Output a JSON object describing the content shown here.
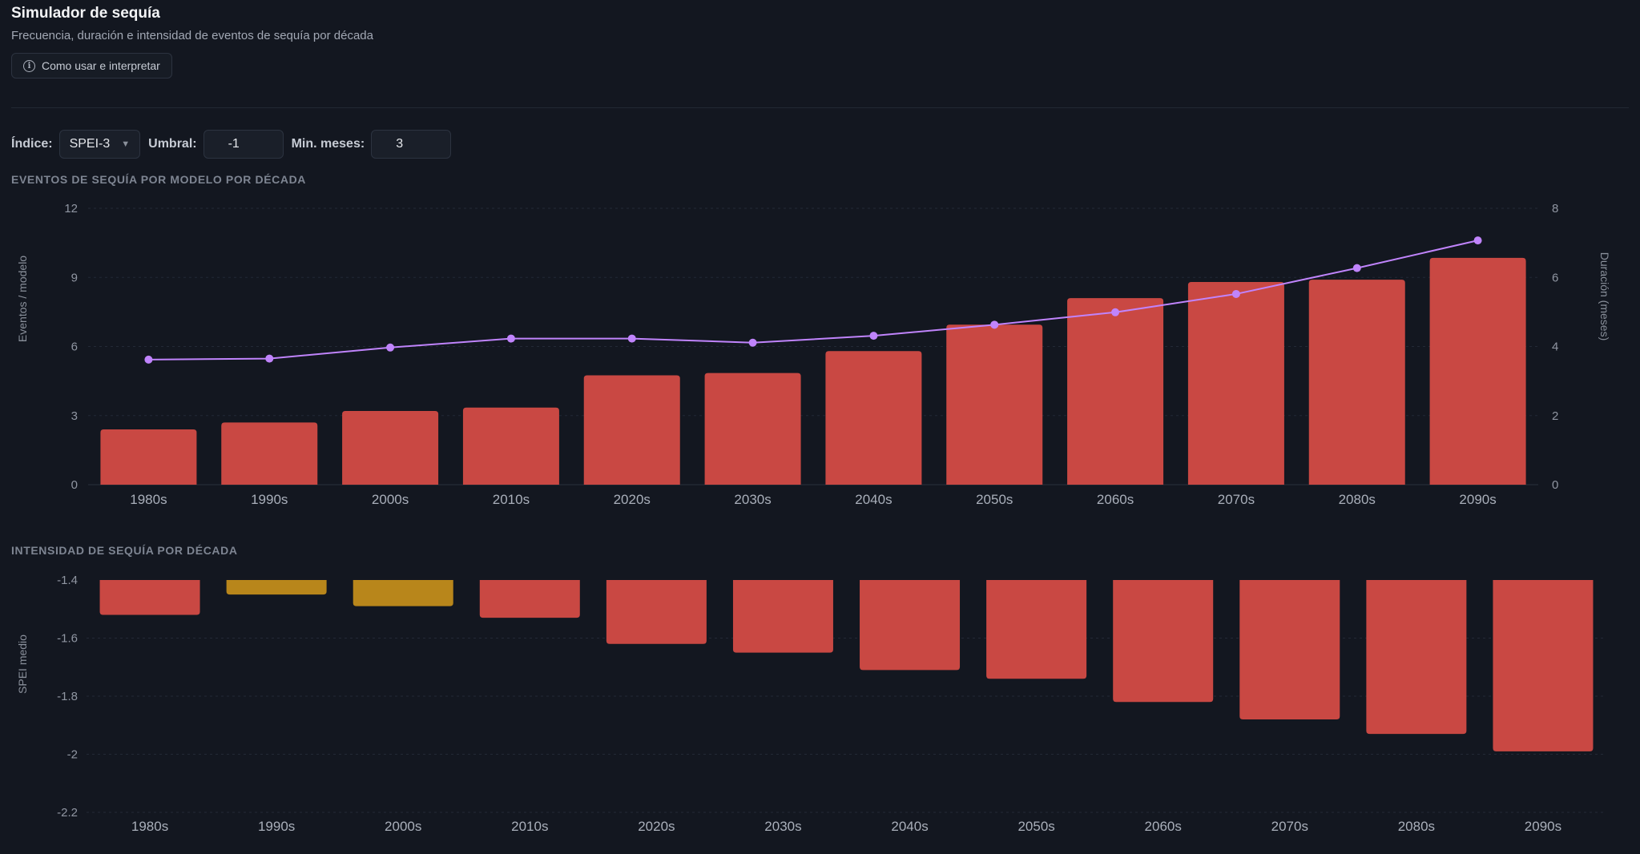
{
  "header": {
    "title": "Simulador de sequía",
    "subtitle": "Frecuencia, duración e intensidad de eventos de sequía por década",
    "help_button_label": "Como usar e interpretar",
    "help_icon_glyph": "i"
  },
  "controls": {
    "index_label": "Índice:",
    "index_value": "SPEI-3",
    "threshold_label": "Umbral:",
    "threshold_value": "-1",
    "min_months_label": "Min. meses:",
    "min_months_value": "3"
  },
  "colors": {
    "bar_red": "#c94843",
    "bar_gold": "#b8861b",
    "line_purple": "#c084fc",
    "axis_text": "#9096a2",
    "grid": "#232936"
  },
  "chart_data": [
    {
      "type": "bar",
      "title": "EVENTOS DE SEQUÍA POR MODELO POR DÉCADA",
      "categories": [
        "1980s",
        "1990s",
        "2000s",
        "2010s",
        "2020s",
        "2030s",
        "2040s",
        "2050s",
        "2060s",
        "2070s",
        "2080s",
        "2090s"
      ],
      "series": [
        {
          "name": "Eventos / modelo",
          "type": "bar",
          "axis": "left",
          "values": [
            2.4,
            2.7,
            3.2,
            3.35,
            4.75,
            4.85,
            5.8,
            6.95,
            8.1,
            8.8,
            8.9,
            9.85
          ]
        },
        {
          "name": "Duración (meses)",
          "type": "line",
          "axis": "right",
          "values": [
            3.62,
            3.65,
            3.97,
            4.23,
            4.23,
            4.11,
            4.31,
            4.63,
            4.99,
            5.52,
            6.27,
            7.07
          ]
        }
      ],
      "ylabel": "Eventos / modelo",
      "ylabel_right": "Duración (meses)",
      "ylim": [
        0,
        12
      ],
      "ylim_right": [
        0,
        8
      ],
      "yticks": [
        "0",
        "3",
        "6",
        "9",
        "12"
      ],
      "yticks_right": [
        "0",
        "2",
        "4",
        "6",
        "8"
      ],
      "grid": true
    },
    {
      "type": "bar",
      "title": "INTENSIDAD DE SEQUÍA POR DÉCADA",
      "categories": [
        "1980s",
        "1990s",
        "2000s",
        "2010s",
        "2020s",
        "2030s",
        "2040s",
        "2050s",
        "2060s",
        "2070s",
        "2080s",
        "2090s"
      ],
      "values": [
        -1.52,
        -1.45,
        -1.49,
        -1.53,
        -1.62,
        -1.65,
        -1.71,
        -1.74,
        -1.82,
        -1.88,
        -1.93,
        -1.99
      ],
      "bar_colors": [
        "red",
        "gold",
        "gold",
        "red",
        "red",
        "red",
        "red",
        "red",
        "red",
        "red",
        "red",
        "red"
      ],
      "ylabel": "SPEI medio",
      "ylim": [
        -2.2,
        -1.4
      ],
      "yticks": [
        "-1.4",
        "-1.6",
        "-1.8",
        "-2",
        "-2.2"
      ],
      "grid": true
    }
  ]
}
